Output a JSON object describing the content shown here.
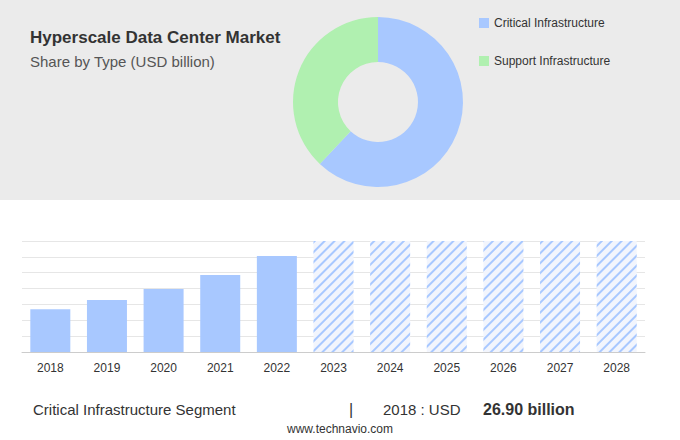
{
  "title": "Hyperscale Data Center Market",
  "subtitle": "Share by Type (USD billion)",
  "footer": {
    "segment": "Critical Infrastructure Segment",
    "separator": "|",
    "prefix": "2018 : USD",
    "value": "26.90 billion"
  },
  "source": "www.technavio.com",
  "chart_data": [
    {
      "type": "donut",
      "categories": [
        "Critical Infrastructure",
        "Support Infrastructure"
      ],
      "values": [
        62,
        38
      ],
      "colors": [
        "#a8c8ff",
        "#b0f0b0"
      ],
      "legend": "right"
    },
    {
      "type": "bar",
      "categories": [
        "2018",
        "2019",
        "2020",
        "2021",
        "2022",
        "2023",
        "2024",
        "2025",
        "2026",
        "2027",
        "2028"
      ],
      "series": [
        {
          "color": "#a8c8ff",
          "values": [
            26.9,
            32.8,
            39.7,
            48.5,
            60.5,
            null,
            null,
            null,
            null,
            null,
            null
          ]
        },
        {
          "color": "#a8c8ff",
          "marker": "hatched",
          "values": [
            null,
            null,
            null,
            null,
            null,
            70,
            70,
            70,
            70,
            70,
            70
          ]
        }
      ],
      "ylim": [
        0,
        70
      ],
      "yticks": [
        0,
        10,
        20,
        30,
        40,
        50,
        60,
        70
      ],
      "grid": true,
      "tick_labels": "x"
    }
  ]
}
